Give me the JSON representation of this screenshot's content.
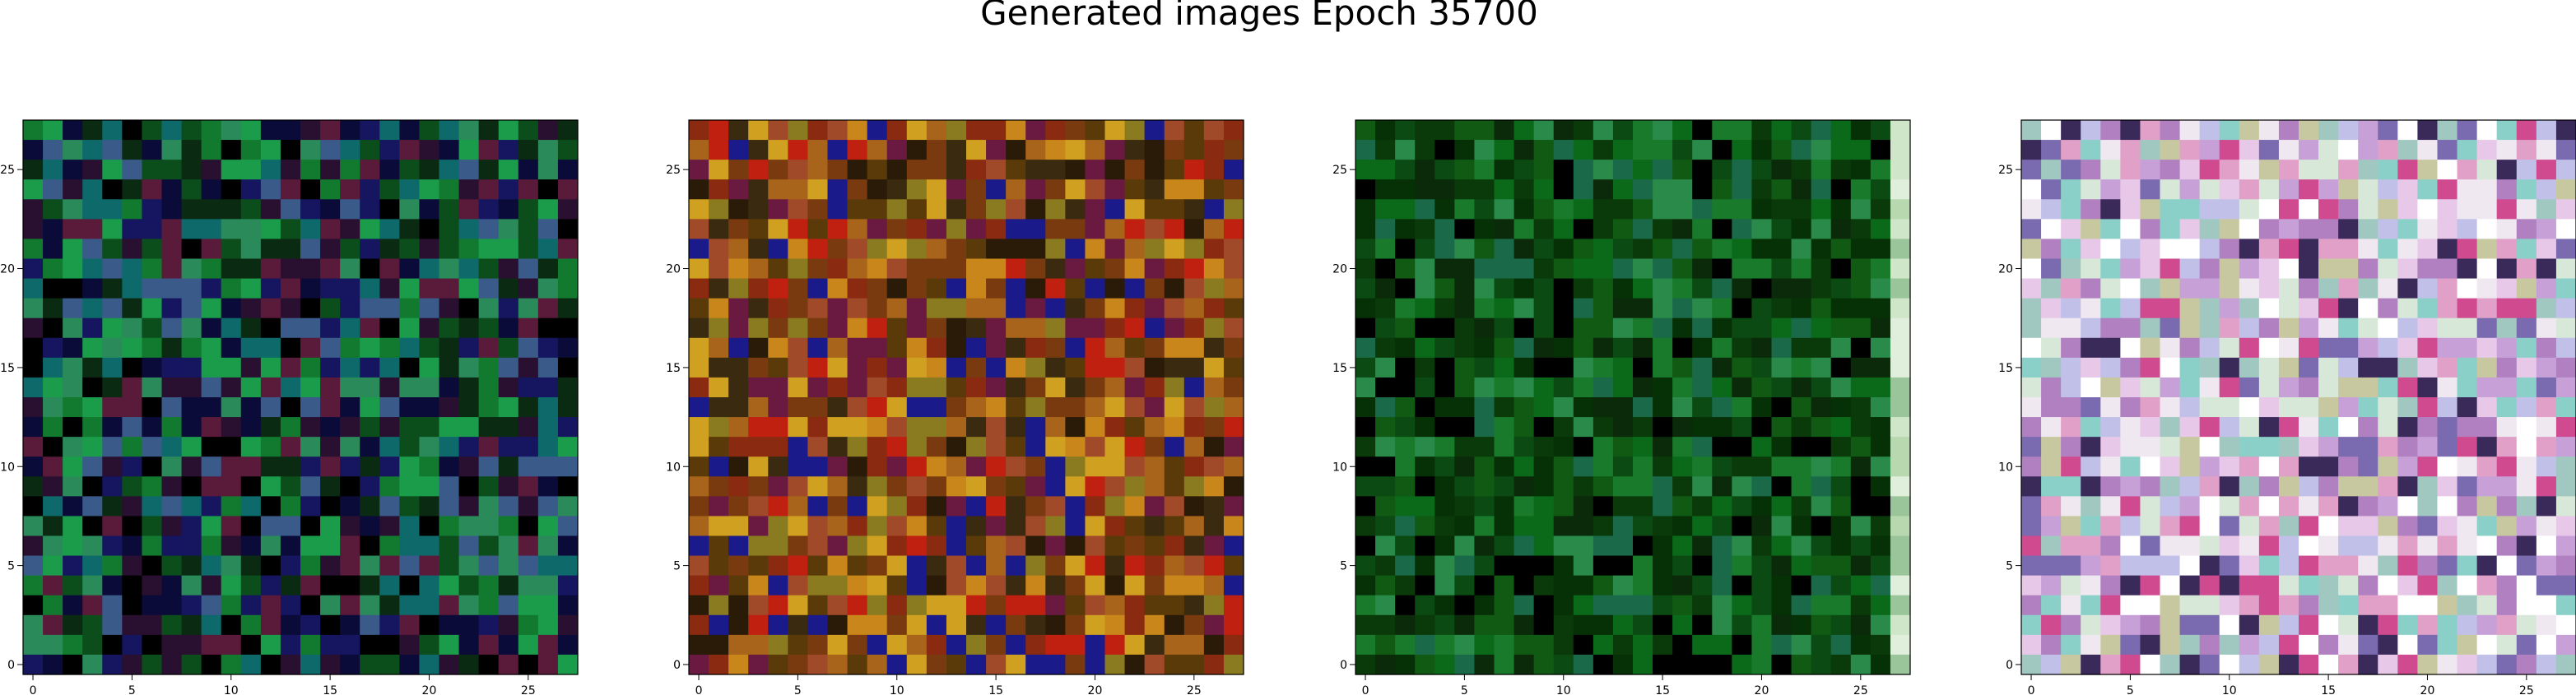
{
  "figure": {
    "title": "Generated images Epoch 35700"
  },
  "chart_data": [
    {
      "type": "heatmap",
      "grid_size": 28,
      "x_ticks": [
        "0",
        "5",
        "10",
        "15",
        "20",
        "25"
      ],
      "y_ticks": [
        "0",
        "5",
        "10",
        "15",
        "20",
        "25"
      ],
      "xlim": [
        -0.5,
        27.5
      ],
      "ylim": [
        27.5,
        -0.5
      ],
      "palette": [
        "#0a2a12",
        "#0c4d1c",
        "#127a2e",
        "#1a9c4a",
        "#0b0b3a",
        "#151560",
        "#2a1030",
        "#5a1a3a",
        "#0e6a6a",
        "#2a8a5a",
        "#000000",
        "#3a5a8a"
      ],
      "seed": 11
    },
    {
      "type": "heatmap",
      "grid_size": 28,
      "x_ticks": [
        "0",
        "5",
        "10",
        "15",
        "20",
        "25"
      ],
      "y_ticks": [
        "0",
        "5",
        "10",
        "15",
        "20",
        "25"
      ],
      "xlim": [
        -0.5,
        27.5
      ],
      "ylim": [
        27.5,
        -0.5
      ],
      "palette": [
        "#7a3a10",
        "#a8641a",
        "#c9861a",
        "#8a2a10",
        "#c02010",
        "#5a3a08",
        "#d0a020",
        "#3a2a10",
        "#6a1a40",
        "#a04a2a",
        "#8a7a20",
        "#1a1a8a",
        "#2a1a08"
      ],
      "seed": 23
    },
    {
      "type": "heatmap",
      "grid_size": 28,
      "x_ticks": [
        "0",
        "5",
        "10",
        "15",
        "20",
        "25"
      ],
      "y_ticks": [
        "0",
        "5",
        "10",
        "15",
        "20",
        "25"
      ],
      "xlim": [
        -0.5,
        27.5
      ],
      "ylim": [
        27.5,
        -0.5
      ],
      "palette": [
        "#0a3a0a",
        "#0b4a12",
        "#105a14",
        "#0a6a1a",
        "#187a2a",
        "#0a2a0a",
        "#063006",
        "#2a8a4a",
        "#000000",
        "#1a6a4a"
      ],
      "edge_palette": [
        "#b8d8b0",
        "#cfe6c8",
        "#9ac49a",
        "#e0eedc"
      ],
      "seed": 37
    },
    {
      "type": "heatmap",
      "grid_size": 28,
      "x_ticks": [
        "0",
        "5",
        "10",
        "15",
        "20",
        "25"
      ],
      "y_ticks": [
        "0",
        "5",
        "10",
        "15",
        "20",
        "25"
      ],
      "xlim": [
        -0.5,
        27.5
      ],
      "ylim": [
        27.5,
        -0.5
      ],
      "palette": [
        "#e8c8e8",
        "#c8a0d8",
        "#d8e8d8",
        "#a0c8c0",
        "#e0a0c8",
        "#b080c0",
        "#f0e8f0",
        "#c0c0e8",
        "#7a6ab0",
        "#c8c8a0",
        "#3a2a5a",
        "#d04a90",
        "#ffffff",
        "#8ad0c8"
      ],
      "seed": 51
    }
  ]
}
